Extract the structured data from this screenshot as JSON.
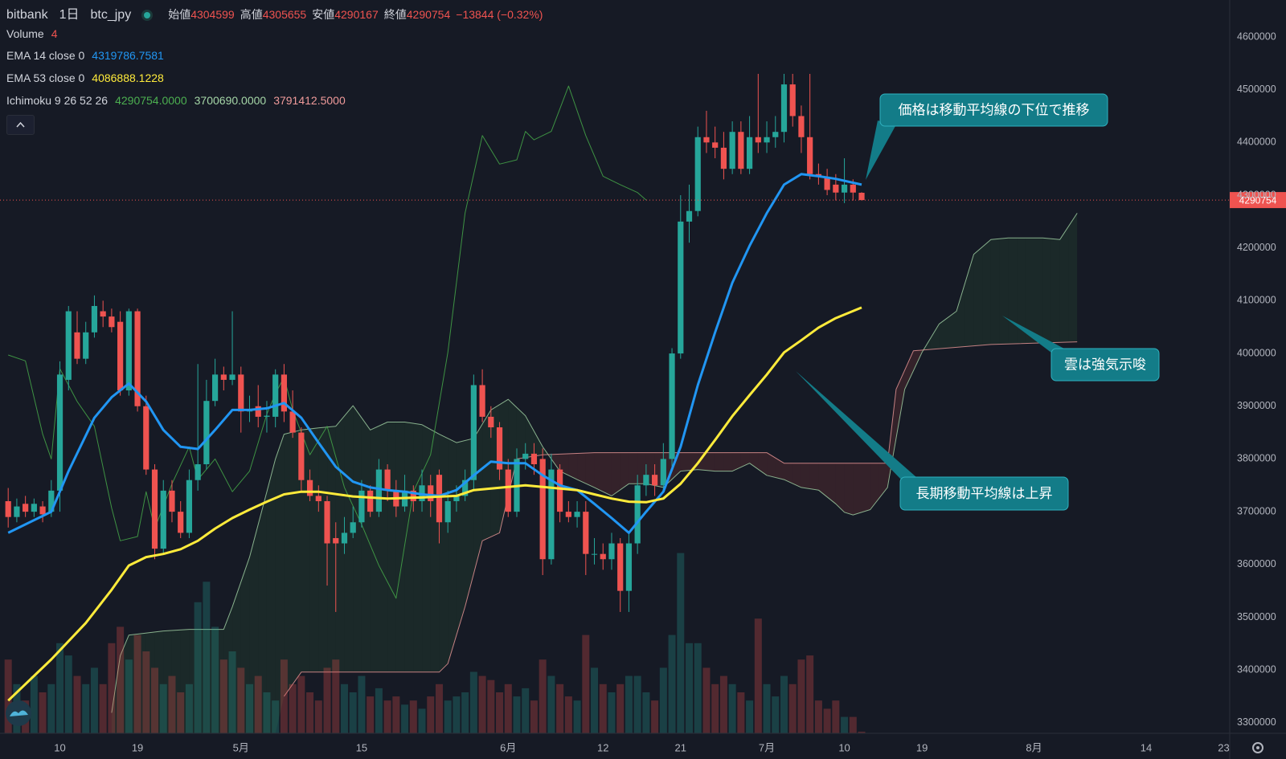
{
  "header": {
    "exchange": "bitbank",
    "interval": "1日",
    "symbol": "btc_jpy",
    "ohlc": [
      {
        "label": "始値",
        "value": "4304599"
      },
      {
        "label": "高値",
        "value": "4305655"
      },
      {
        "label": "安値",
        "value": "4290167"
      },
      {
        "label": "終値",
        "value": "4290754"
      }
    ],
    "change": "−13844 (−0.32%)",
    "value_color": "#ef5350"
  },
  "indicators": [
    {
      "name": "Volume",
      "values": [
        "4"
      ],
      "colors": [
        "#ef5350"
      ]
    },
    {
      "name": "EMA 14 close 0",
      "values": [
        "4319786.7581"
      ],
      "colors": [
        "#2196f3"
      ]
    },
    {
      "name": "EMA 53 close 0",
      "values": [
        "4086888.1228"
      ],
      "colors": [
        "#ffeb3b"
      ]
    },
    {
      "name": "Ichimoku 9 26 52 26",
      "values": [
        "4290754.0000",
        "3700690.0000",
        "3791412.5000"
      ],
      "colors": [
        "#4caf50",
        "#a5d6a7",
        "#ef9a9a"
      ]
    }
  ],
  "chart_data": {
    "type": "candlestick",
    "x": [
      4,
      5,
      6,
      7,
      8,
      9,
      10,
      11,
      12,
      13,
      14,
      15,
      16,
      17,
      18,
      19,
      20,
      21,
      22,
      23,
      24,
      25,
      26,
      27,
      28,
      29,
      30,
      31,
      32,
      33,
      34,
      35,
      36,
      37,
      38,
      39,
      40,
      41,
      42,
      43,
      44,
      45,
      46,
      47,
      48,
      49,
      50,
      51,
      52,
      53,
      54,
      55,
      56,
      57,
      58,
      59,
      60,
      61,
      62,
      63,
      64,
      65,
      66,
      67,
      68,
      69,
      70,
      71,
      72,
      73,
      74,
      75,
      76,
      77,
      78,
      79,
      80,
      81,
      82,
      83,
      84,
      85,
      86,
      87,
      88,
      89,
      90,
      91,
      92,
      93,
      94,
      95,
      96,
      97,
      98,
      99,
      100,
      101,
      102,
      103
    ],
    "open": [
      3720000,
      3690000,
      3715000,
      3700000,
      3710000,
      3700000,
      3740000,
      3950000,
      4040000,
      3990000,
      4040000,
      4080000,
      4070000,
      4060000,
      3930000,
      4080000,
      3900000,
      3780000,
      3630000,
      3740000,
      3700000,
      3660000,
      3760000,
      3790000,
      3910000,
      3960000,
      3950000,
      3960000,
      3890000,
      3900000,
      3880000,
      3880000,
      3960000,
      3890000,
      3850000,
      3760000,
      3730000,
      3720000,
      3650000,
      3640000,
      3660000,
      3680000,
      3740000,
      3700000,
      3780000,
      3740000,
      3710000,
      3740000,
      3720000,
      3750000,
      3770000,
      3680000,
      3720000,
      3730000,
      3760000,
      3940000,
      3880000,
      3860000,
      3780000,
      3700000,
      3800000,
      3810000,
      3800000,
      3610000,
      3780000,
      3700000,
      3690000,
      3700000,
      3620000,
      3620000,
      3610000,
      3640000,
      3550000,
      3640000,
      3750000,
      3770000,
      3750000,
      3800000,
      4000000,
      4250000,
      4270000,
      4410000,
      4400000,
      4390000,
      4350000,
      4420000,
      4350000,
      4410000,
      4400000,
      4410000,
      4420000,
      4510000,
      4450000,
      4410000,
      4340000,
      4335000,
      4320000,
      4305000,
      4320000,
      4304599
    ],
    "high": [
      3745000,
      3725000,
      3730000,
      3725000,
      3720000,
      3760000,
      3985000,
      4090000,
      4080000,
      4060000,
      4110000,
      4100000,
      4085000,
      4080000,
      4085000,
      4085000,
      3920000,
      3790000,
      3760000,
      3760000,
      3720000,
      3780000,
      3980000,
      3950000,
      3990000,
      3975000,
      4080000,
      3975000,
      3920000,
      3940000,
      3910000,
      3970000,
      3980000,
      3930000,
      3860000,
      3780000,
      3750000,
      3730000,
      3680000,
      3690000,
      3710000,
      3760000,
      3750000,
      3800000,
      3790000,
      3760000,
      3770000,
      3750000,
      3780000,
      3770000,
      3780000,
      3740000,
      3750000,
      3780000,
      3960000,
      3970000,
      3900000,
      3870000,
      3800000,
      3820000,
      3830000,
      3830000,
      3820000,
      3810000,
      3790000,
      3720000,
      3720000,
      3720000,
      3650000,
      3640000,
      3660000,
      3650000,
      3660000,
      3770000,
      3790000,
      3790000,
      3830000,
      4010000,
      4300000,
      4320000,
      4430000,
      4460000,
      4430000,
      4420000,
      4440000,
      4440000,
      4450000,
      4530000,
      4440000,
      4450000,
      4530000,
      4530000,
      4470000,
      4530000,
      4360000,
      4350000,
      4340000,
      4370000,
      4330000,
      4305655
    ],
    "low": [
      3670000,
      3680000,
      3690000,
      3690000,
      3680000,
      3690000,
      3700000,
      3930000,
      3980000,
      3980000,
      4030000,
      4050000,
      4040000,
      3920000,
      3920000,
      3890000,
      3770000,
      3610000,
      3620000,
      3680000,
      3650000,
      3650000,
      3740000,
      3780000,
      3900000,
      3930000,
      3940000,
      3850000,
      3870000,
      3860000,
      3850000,
      3860000,
      3870000,
      3840000,
      3740000,
      3720000,
      3700000,
      3560000,
      3510000,
      3620000,
      3650000,
      3670000,
      3690000,
      3690000,
      3720000,
      3690000,
      3700000,
      3700000,
      3700000,
      3690000,
      3640000,
      3660000,
      3700000,
      3720000,
      3740000,
      3870000,
      3840000,
      3760000,
      3690000,
      3690000,
      3780000,
      3770000,
      3580000,
      3600000,
      3680000,
      3680000,
      3670000,
      3580000,
      3600000,
      3590000,
      3590000,
      3510000,
      3510000,
      3620000,
      3730000,
      3730000,
      3740000,
      3780000,
      3990000,
      4210000,
      4260000,
      4380000,
      4370000,
      4330000,
      4340000,
      4340000,
      4340000,
      4380000,
      4380000,
      4390000,
      4400000,
      4430000,
      4380000,
      4330000,
      4320000,
      4300000,
      4290000,
      4285000,
      4290000,
      4290167
    ],
    "close": [
      3690000,
      3710000,
      3700000,
      3715000,
      3695000,
      3740000,
      3960000,
      4080000,
      3990000,
      4040000,
      4090000,
      4070000,
      4050000,
      3930000,
      4080000,
      3900000,
      3780000,
      3630000,
      3740000,
      3700000,
      3660000,
      3760000,
      3790000,
      3910000,
      3960000,
      3950000,
      3960000,
      3890000,
      3895000,
      3880000,
      3882000,
      3960000,
      3890000,
      3850000,
      3760000,
      3730000,
      3720000,
      3640000,
      3640000,
      3660000,
      3680000,
      3740000,
      3700000,
      3780000,
      3740000,
      3710000,
      3740000,
      3720000,
      3750000,
      3720000,
      3680000,
      3720000,
      3730000,
      3760000,
      3940000,
      3880000,
      3860000,
      3780000,
      3700000,
      3800000,
      3810000,
      3790000,
      3610000,
      3780000,
      3700000,
      3690000,
      3700000,
      3620000,
      3620000,
      3610000,
      3640000,
      3550000,
      3640000,
      3750000,
      3770000,
      3750000,
      3800000,
      4000000,
      4250000,
      4270000,
      4410000,
      4400000,
      4390000,
      4350000,
      4420000,
      4350000,
      4410000,
      4400000,
      4410000,
      4420000,
      4510000,
      4450000,
      4410000,
      4340000,
      4335000,
      4310000,
      4305000,
      4320000,
      4305000,
      4290754
    ],
    "volume": [
      180,
      120,
      80,
      140,
      100,
      120,
      220,
      190,
      140,
      120,
      160,
      120,
      220,
      260,
      180,
      240,
      200,
      160,
      120,
      140,
      100,
      120,
      320,
      370,
      260,
      180,
      200,
      160,
      120,
      140,
      100,
      80,
      180,
      120,
      140,
      100,
      80,
      160,
      180,
      120,
      100,
      140,
      90,
      110,
      80,
      90,
      70,
      80,
      60,
      90,
      120,
      80,
      90,
      100,
      150,
      140,
      130,
      100,
      120,
      90,
      110,
      80,
      180,
      140,
      120,
      90,
      80,
      240,
      160,
      120,
      100,
      120,
      140,
      140,
      100,
      80,
      160,
      240,
      440,
      220,
      220,
      160,
      120,
      140,
      120,
      100,
      80,
      280,
      120,
      90,
      140,
      120,
      180,
      190,
      80,
      60,
      80,
      40,
      40,
      4
    ],
    "up_color": "#26a69a",
    "down_color": "#ef5350",
    "lines": [
      {
        "color": "#2196f3",
        "x": [
          4,
          9,
          11,
          14,
          16,
          18,
          20,
          22,
          24,
          26,
          28,
          30,
          32,
          34,
          36,
          38,
          40,
          42,
          44,
          46,
          48,
          50,
          52,
          54,
          56,
          58,
          60,
          62,
          64,
          66,
          68,
          70,
          72,
          74,
          76,
          78,
          80,
          82,
          84,
          86,
          88,
          90,
          92,
          94,
          96,
          98,
          100,
          103
        ],
        "values": [
          3660000,
          3700000,
          3777000,
          3878000,
          3917000,
          3943000,
          3909000,
          3855000,
          3823000,
          3819000,
          3855000,
          3893000,
          3893000,
          3896000,
          3906000,
          3878000,
          3831000,
          3785000,
          3757000,
          3746000,
          3741000,
          3738000,
          3733000,
          3730000,
          3741000,
          3769000,
          3795000,
          3792000,
          3792000,
          3769000,
          3750000,
          3741000,
          3715000,
          3688000,
          3660000,
          3700000,
          3738000,
          3823000,
          3940000,
          4040000,
          4134000,
          4204000,
          4266000,
          4320000,
          4340000,
          4336000,
          4331000,
          4320000
        ]
      },
      {
        "color": "#ffeb3b",
        "x": [
          4,
          9,
          13,
          16,
          18,
          20,
          22,
          24,
          26,
          28,
          30,
          32,
          34,
          36,
          38,
          40,
          44,
          48,
          52,
          56,
          58,
          62,
          64,
          66,
          68,
          70,
          72,
          74,
          76,
          78,
          80,
          82,
          84,
          86,
          88,
          90,
          92,
          94,
          96,
          98,
          100,
          103
        ],
        "values": [
          3342000,
          3420000,
          3489000,
          3552000,
          3598000,
          3614000,
          3620000,
          3629000,
          3645000,
          3668000,
          3688000,
          3704000,
          3719000,
          3733000,
          3738000,
          3738000,
          3729000,
          3725000,
          3727000,
          3730000,
          3741000,
          3747000,
          3750000,
          3747000,
          3744000,
          3741000,
          3733000,
          3725000,
          3719000,
          3718000,
          3725000,
          3753000,
          3792000,
          3836000,
          3881000,
          3921000,
          3960000,
          4002000,
          4025000,
          4049000,
          4067000,
          4087000
        ]
      }
    ],
    "ichimoku": {
      "lagging": {
        "color": "#43a047",
        "x": [
          4,
          6,
          8,
          9,
          10,
          12,
          14,
          16,
          17,
          19,
          20,
          21,
          23,
          25,
          26,
          28,
          30,
          32,
          34,
          35,
          36,
          37,
          39,
          41,
          43,
          45,
          47,
          49,
          51,
          53,
          55,
          57,
          59,
          61,
          63,
          64,
          65,
          67,
          69,
          71,
          73,
          75,
          77,
          78
        ],
        "values": [
          3997000,
          3986000,
          3847000,
          3800000,
          3971000,
          3909000,
          3862000,
          3707000,
          3645000,
          3653000,
          3738000,
          3668000,
          3753000,
          3823000,
          3761000,
          3800000,
          3738000,
          3777000,
          3885000,
          3924000,
          3955000,
          3893000,
          3808000,
          3862000,
          3746000,
          3676000,
          3598000,
          3536000,
          3738000,
          3808000,
          4002000,
          4266000,
          4413000,
          4359000,
          4367000,
          4421000,
          4405000,
          4421000,
          4507000,
          4413000,
          4336000,
          4320000,
          4305000,
          4290754
        ]
      },
      "span_a": {
        "color": "#a5d6a7",
        "x": [
          16,
          17,
          18,
          22,
          25,
          27,
          29,
          30,
          32,
          34,
          35,
          36,
          38,
          40,
          42,
          44,
          46,
          48,
          50,
          52,
          54,
          56,
          58,
          60,
          62,
          64,
          66,
          68,
          70,
          72,
          74,
          76,
          78,
          80,
          82,
          84,
          86,
          88,
          90,
          92,
          94,
          96,
          98,
          100,
          101,
          102,
          104,
          106,
          108,
          110,
          112,
          114,
          116,
          118,
          120,
          122,
          124,
          126,
          128
        ],
        "values": [
          3319000,
          3427000,
          3466000,
          3474000,
          3477000,
          3477000,
          3477000,
          3520000,
          3614000,
          3738000,
          3800000,
          3847000,
          3855000,
          3859000,
          3862000,
          3901000,
          3855000,
          3870000,
          3870000,
          3865000,
          3847000,
          3831000,
          3839000,
          3893000,
          3913000,
          3882000,
          3823000,
          3777000,
          3761000,
          3746000,
          3730000,
          3753000,
          3753000,
          3746000,
          3777000,
          3780000,
          3777000,
          3777000,
          3792000,
          3769000,
          3761000,
          3746000,
          3741000,
          3715000,
          3699000,
          3694000,
          3704000,
          3746000,
          3932000,
          4002000,
          4056000,
          4080000,
          4188000,
          4216000,
          4219000,
          4219000,
          4219000,
          4216000,
          4266000
        ]
      },
      "span_b": {
        "color": "#ef9a9a",
        "x": [
          36,
          38,
          54,
          55,
          57,
          59,
          61,
          63,
          66,
          72,
          92,
          94,
          106,
          107,
          109,
          118,
          128
        ],
        "values": [
          3350000,
          3396000,
          3396000,
          3412000,
          3520000,
          3645000,
          3660000,
          3800000,
          3808000,
          3812000,
          3812000,
          3792000,
          3792000,
          3932000,
          4005000,
          4017000,
          4022000
        ]
      },
      "cloud_up": "rgba(76,175,80,0.10)",
      "cloud_down": "rgba(239,83,80,0.14)"
    },
    "price_line": 4290754,
    "xlim": [
      3.05,
      145.7
    ],
    "xticks": [
      10,
      19,
      {
        "value": 31,
        "label": "5月"
      },
      {
        "value": 45,
        "label": "15"
      },
      {
        "value": 62,
        "label": "6月"
      },
      {
        "value": 73,
        "label": "12"
      },
      {
        "value": 82,
        "label": "21"
      },
      {
        "value": 92,
        "label": "7月"
      },
      {
        "value": 101,
        "label": "10"
      },
      {
        "value": 110,
        "label": "19"
      },
      {
        "value": 123,
        "label": "8月"
      },
      {
        "value": 136,
        "label": "14"
      },
      {
        "value": 145,
        "label": "23"
      }
    ],
    "ylim": [
      3280000,
      4670000
    ],
    "yticks": [
      3300000,
      3400000,
      3500000,
      3600000,
      3700000,
      3800000,
      3900000,
      4000000,
      4100000,
      4200000,
      4300000,
      4400000,
      4500000,
      4600000
    ],
    "grid": false,
    "annotations": [
      {
        "text": "価格は移動平均線の下位で推移"
      },
      {
        "text": "雲は強気示唆"
      },
      {
        "text": "長期移動平均線は上昇"
      }
    ]
  }
}
